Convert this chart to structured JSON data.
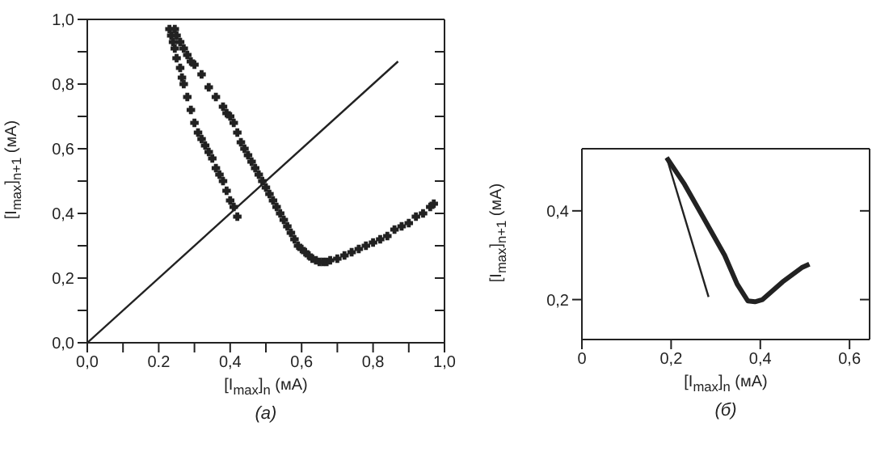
{
  "chart_data": [
    {
      "type": "scatter",
      "xlabel": "[I$_{max}$]$_{n}$ (мА)",
      "ylabel": "[I$_{max}$]$_{n+1}$ (мА)",
      "annotations": [
        "(а)"
      ],
      "marker": "cross",
      "xlim": [
        0,
        1
      ],
      "ylim": [
        0,
        1
      ],
      "xticks": [
        {
          "value": 0,
          "label": "0,0"
        },
        {
          "value": 0.1,
          "label": null
        },
        {
          "value": 0.2,
          "label": "0.2"
        },
        {
          "value": 0.3,
          "label": null
        },
        {
          "value": 0.4,
          "label": "0,4"
        },
        {
          "value": 0.5,
          "label": null
        },
        {
          "value": 0.6,
          "label": "0,6"
        },
        {
          "value": 0.7,
          "label": null
        },
        {
          "value": 0.8,
          "label": "0,8"
        },
        {
          "value": 0.9,
          "label": null
        },
        {
          "value": 1,
          "label": "1,0"
        }
      ],
      "yticks": [
        {
          "value": 0,
          "label": "0,0"
        },
        {
          "value": 0.1,
          "label": null
        },
        {
          "value": 0.2,
          "label": "0,2"
        },
        {
          "value": 0.3,
          "label": null
        },
        {
          "value": 0.4,
          "label": "0,4"
        },
        {
          "value": 0.5,
          "label": null
        },
        {
          "value": 0.6,
          "label": "0,6"
        },
        {
          "value": 0.7,
          "label": null
        },
        {
          "value": 0.8,
          "label": "0,8"
        },
        {
          "value": 0.9,
          "label": null
        },
        {
          "value": 1,
          "label": "1,0"
        }
      ],
      "series": [
        {
          "color": "#222222",
          "x": [
            0.23,
            0.235,
            0.24,
            0.245,
            0.25,
            0.26,
            0.265,
            0.27,
            0.28,
            0.29,
            0.3,
            0.31,
            0.32,
            0.33,
            0.34,
            0.35,
            0.36,
            0.37,
            0.38,
            0.39,
            0.4,
            0.41,
            0.42
          ],
          "values": [
            0.97,
            0.95,
            0.93,
            0.91,
            0.88,
            0.85,
            0.82,
            0.8,
            0.76,
            0.72,
            0.68,
            0.65,
            0.63,
            0.61,
            0.59,
            0.57,
            0.54,
            0.52,
            0.5,
            0.47,
            0.44,
            0.42,
            0.39
          ]
        },
        {
          "color": "#222222",
          "x": [
            0.245,
            0.25,
            0.26,
            0.27,
            0.28,
            0.29,
            0.3,
            0.32,
            0.34,
            0.36,
            0.38,
            0.39,
            0.4,
            0.41,
            0.42,
            0.43,
            0.44,
            0.45,
            0.46,
            0.47,
            0.48,
            0.49,
            0.5,
            0.51,
            0.52,
            0.53,
            0.54,
            0.55,
            0.56,
            0.57,
            0.58,
            0.59,
            0.6,
            0.61,
            0.62,
            0.63,
            0.64,
            0.65,
            0.66,
            0.67,
            0.68,
            0.7,
            0.72,
            0.74,
            0.76,
            0.78,
            0.8,
            0.82,
            0.84,
            0.86,
            0.88,
            0.9,
            0.92,
            0.94,
            0.96,
            0.97
          ],
          "values": [
            0.97,
            0.95,
            0.93,
            0.91,
            0.89,
            0.87,
            0.86,
            0.83,
            0.79,
            0.76,
            0.73,
            0.71,
            0.7,
            0.68,
            0.65,
            0.62,
            0.6,
            0.58,
            0.56,
            0.54,
            0.52,
            0.5,
            0.48,
            0.46,
            0.44,
            0.42,
            0.4,
            0.38,
            0.36,
            0.34,
            0.32,
            0.3,
            0.29,
            0.28,
            0.27,
            0.26,
            0.255,
            0.25,
            0.25,
            0.25,
            0.255,
            0.26,
            0.27,
            0.28,
            0.29,
            0.3,
            0.31,
            0.32,
            0.33,
            0.35,
            0.36,
            0.37,
            0.39,
            0.4,
            0.42,
            0.43
          ]
        },
        {
          "type": "line",
          "marker": "none",
          "color": "#222222",
          "x": [
            0,
            0.87
          ],
          "values": [
            0,
            0.87
          ]
        }
      ]
    },
    {
      "type": "line",
      "xlabel": "[I$_{max}$]$_{n}$ (мА)",
      "ylabel": "[I$_{max}$]$_{n+1}$ (мА)",
      "annotations": [
        "(б)"
      ],
      "marker": "none",
      "line_style": "solid",
      "xlim": [
        0,
        0.645
      ],
      "ylim": [
        0.11,
        0.54
      ],
      "xticks": [
        {
          "value": 0,
          "label": "0"
        },
        {
          "value": 0.2,
          "label": "0,2"
        },
        {
          "value": 0.4,
          "label": "0,4"
        },
        {
          "value": 0.6,
          "label": "0,6"
        }
      ],
      "yticks": [
        {
          "value": 0.2,
          "label": "0,2"
        },
        {
          "value": 0.4,
          "label": "0,4"
        }
      ],
      "series": [
        {
          "color": "#222222",
          "x": [
            0.19,
            0.23,
            0.275,
            0.32,
            0.348,
            0.372,
            0.388,
            0.405,
            0.45,
            0.493,
            0.51
          ],
          "values": [
            0.52,
            0.46,
            0.38,
            0.3,
            0.235,
            0.197,
            0.195,
            0.2,
            0.24,
            0.272,
            0.28
          ]
        },
        {
          "color": "#222222",
          "x": [
            0.19,
            0.284
          ],
          "values": [
            0.52,
            0.206
          ]
        }
      ]
    }
  ]
}
